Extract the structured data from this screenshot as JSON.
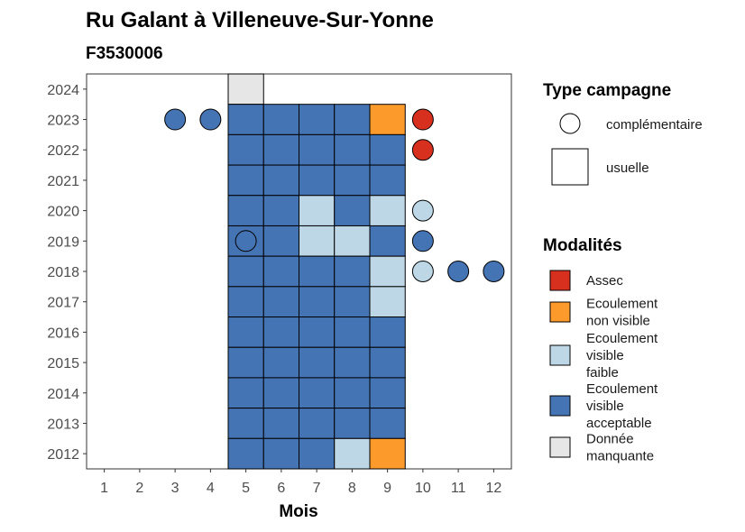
{
  "chart_data": {
    "type": "heatmap",
    "title": "Ru Galant à Villeneuve-Sur-Yonne",
    "subtitle": "F3530006",
    "xlabel": "Mois",
    "ylabel": "",
    "x_ticks": [
      1,
      2,
      3,
      4,
      5,
      6,
      7,
      8,
      9,
      10,
      11,
      12
    ],
    "y_ticks": [
      2012,
      2013,
      2014,
      2015,
      2016,
      2017,
      2018,
      2019,
      2020,
      2021,
      2022,
      2023,
      2024
    ],
    "xlim": [
      0.5,
      12.5
    ],
    "ylim": [
      2011.5,
      2024.5
    ],
    "grid": false,
    "legend_placement": "right",
    "campaign_legend": {
      "title": "Type campagne",
      "items": [
        {
          "key": "complementaire",
          "label": "complémentaire",
          "shape": "circle"
        },
        {
          "key": "usuelle",
          "label": "usuelle",
          "shape": "square"
        }
      ]
    },
    "modality_legend": {
      "title": "Modalités",
      "items": [
        {
          "key": "assec",
          "lines": [
            "Assec"
          ],
          "color": "#d7301f"
        },
        {
          "key": "ecoulement_non_visible",
          "lines": [
            "Ecoulement",
            "non visible"
          ],
          "color": "#fd9a2c"
        },
        {
          "key": "ecoulement_visible_faible",
          "lines": [
            "Ecoulement",
            "visible",
            "faible"
          ],
          "color": "#bdd7e7"
        },
        {
          "key": "ecoulement_visible_acceptable",
          "lines": [
            "Ecoulement",
            "visible",
            "acceptable"
          ],
          "color": "#4574b4"
        },
        {
          "key": "donnee_manquante",
          "lines": [
            "Donnée",
            "manquante"
          ],
          "color": "#e6e6e6"
        }
      ]
    },
    "usuelle": [
      {
        "year": 2024,
        "month": 5,
        "modality": "donnee_manquante"
      },
      {
        "year": 2023,
        "month": 5,
        "modality": "ecoulement_visible_acceptable"
      },
      {
        "year": 2023,
        "month": 6,
        "modality": "ecoulement_visible_acceptable"
      },
      {
        "year": 2023,
        "month": 7,
        "modality": "ecoulement_visible_acceptable"
      },
      {
        "year": 2023,
        "month": 8,
        "modality": "ecoulement_visible_acceptable"
      },
      {
        "year": 2023,
        "month": 9,
        "modality": "ecoulement_non_visible"
      },
      {
        "year": 2022,
        "month": 5,
        "modality": "ecoulement_visible_acceptable"
      },
      {
        "year": 2022,
        "month": 6,
        "modality": "ecoulement_visible_acceptable"
      },
      {
        "year": 2022,
        "month": 7,
        "modality": "ecoulement_visible_acceptable"
      },
      {
        "year": 2022,
        "month": 8,
        "modality": "ecoulement_visible_acceptable"
      },
      {
        "year": 2022,
        "month": 9,
        "modality": "ecoulement_visible_acceptable"
      },
      {
        "year": 2021,
        "month": 5,
        "modality": "ecoulement_visible_acceptable"
      },
      {
        "year": 2021,
        "month": 6,
        "modality": "ecoulement_visible_acceptable"
      },
      {
        "year": 2021,
        "month": 7,
        "modality": "ecoulement_visible_acceptable"
      },
      {
        "year": 2021,
        "month": 8,
        "modality": "ecoulement_visible_acceptable"
      },
      {
        "year": 2021,
        "month": 9,
        "modality": "ecoulement_visible_acceptable"
      },
      {
        "year": 2020,
        "month": 5,
        "modality": "ecoulement_visible_acceptable"
      },
      {
        "year": 2020,
        "month": 6,
        "modality": "ecoulement_visible_acceptable"
      },
      {
        "year": 2020,
        "month": 7,
        "modality": "ecoulement_visible_faible"
      },
      {
        "year": 2020,
        "month": 8,
        "modality": "ecoulement_visible_acceptable"
      },
      {
        "year": 2020,
        "month": 9,
        "modality": "ecoulement_visible_faible"
      },
      {
        "year": 2019,
        "month": 5,
        "modality": "ecoulement_visible_acceptable"
      },
      {
        "year": 2019,
        "month": 6,
        "modality": "ecoulement_visible_acceptable"
      },
      {
        "year": 2019,
        "month": 7,
        "modality": "ecoulement_visible_faible"
      },
      {
        "year": 2019,
        "month": 8,
        "modality": "ecoulement_visible_faible"
      },
      {
        "year": 2019,
        "month": 9,
        "modality": "ecoulement_visible_acceptable"
      },
      {
        "year": 2018,
        "month": 5,
        "modality": "ecoulement_visible_acceptable"
      },
      {
        "year": 2018,
        "month": 6,
        "modality": "ecoulement_visible_acceptable"
      },
      {
        "year": 2018,
        "month": 7,
        "modality": "ecoulement_visible_acceptable"
      },
      {
        "year": 2018,
        "month": 8,
        "modality": "ecoulement_visible_acceptable"
      },
      {
        "year": 2018,
        "month": 9,
        "modality": "ecoulement_visible_faible"
      },
      {
        "year": 2017,
        "month": 5,
        "modality": "ecoulement_visible_acceptable"
      },
      {
        "year": 2017,
        "month": 6,
        "modality": "ecoulement_visible_acceptable"
      },
      {
        "year": 2017,
        "month": 7,
        "modality": "ecoulement_visible_acceptable"
      },
      {
        "year": 2017,
        "month": 8,
        "modality": "ecoulement_visible_acceptable"
      },
      {
        "year": 2017,
        "month": 9,
        "modality": "ecoulement_visible_faible"
      },
      {
        "year": 2016,
        "month": 5,
        "modality": "ecoulement_visible_acceptable"
      },
      {
        "year": 2016,
        "month": 6,
        "modality": "ecoulement_visible_acceptable"
      },
      {
        "year": 2016,
        "month": 7,
        "modality": "ecoulement_visible_acceptable"
      },
      {
        "year": 2016,
        "month": 8,
        "modality": "ecoulement_visible_acceptable"
      },
      {
        "year": 2016,
        "month": 9,
        "modality": "ecoulement_visible_acceptable"
      },
      {
        "year": 2015,
        "month": 5,
        "modality": "ecoulement_visible_acceptable"
      },
      {
        "year": 2015,
        "month": 6,
        "modality": "ecoulement_visible_acceptable"
      },
      {
        "year": 2015,
        "month": 7,
        "modality": "ecoulement_visible_acceptable"
      },
      {
        "year": 2015,
        "month": 8,
        "modality": "ecoulement_visible_acceptable"
      },
      {
        "year": 2015,
        "month": 9,
        "modality": "ecoulement_visible_acceptable"
      },
      {
        "year": 2014,
        "month": 5,
        "modality": "ecoulement_visible_acceptable"
      },
      {
        "year": 2014,
        "month": 6,
        "modality": "ecoulement_visible_acceptable"
      },
      {
        "year": 2014,
        "month": 7,
        "modality": "ecoulement_visible_acceptable"
      },
      {
        "year": 2014,
        "month": 8,
        "modality": "ecoulement_visible_acceptable"
      },
      {
        "year": 2014,
        "month": 9,
        "modality": "ecoulement_visible_acceptable"
      },
      {
        "year": 2013,
        "month": 5,
        "modality": "ecoulement_visible_acceptable"
      },
      {
        "year": 2013,
        "month": 6,
        "modality": "ecoulement_visible_acceptable"
      },
      {
        "year": 2013,
        "month": 7,
        "modality": "ecoulement_visible_acceptable"
      },
      {
        "year": 2013,
        "month": 8,
        "modality": "ecoulement_visible_acceptable"
      },
      {
        "year": 2013,
        "month": 9,
        "modality": "ecoulement_visible_acceptable"
      },
      {
        "year": 2012,
        "month": 5,
        "modality": "ecoulement_visible_acceptable"
      },
      {
        "year": 2012,
        "month": 6,
        "modality": "ecoulement_visible_acceptable"
      },
      {
        "year": 2012,
        "month": 7,
        "modality": "ecoulement_visible_acceptable"
      },
      {
        "year": 2012,
        "month": 8,
        "modality": "ecoulement_visible_faible"
      },
      {
        "year": 2012,
        "month": 9,
        "modality": "ecoulement_non_visible"
      }
    ],
    "complementaire": [
      {
        "year": 2023,
        "month": 3,
        "modality": "ecoulement_visible_acceptable"
      },
      {
        "year": 2023,
        "month": 4,
        "modality": "ecoulement_visible_acceptable"
      },
      {
        "year": 2023,
        "month": 10,
        "modality": "assec"
      },
      {
        "year": 2022,
        "month": 10,
        "modality": "assec"
      },
      {
        "year": 2020,
        "month": 10,
        "modality": "ecoulement_visible_faible"
      },
      {
        "year": 2019,
        "month": 5,
        "modality": "ecoulement_visible_acceptable"
      },
      {
        "year": 2019,
        "month": 10,
        "modality": "ecoulement_visible_acceptable"
      },
      {
        "year": 2018,
        "month": 10,
        "modality": "ecoulement_visible_faible"
      },
      {
        "year": 2018,
        "month": 11,
        "modality": "ecoulement_visible_acceptable"
      },
      {
        "year": 2018,
        "month": 12,
        "modality": "ecoulement_visible_acceptable"
      }
    ]
  }
}
